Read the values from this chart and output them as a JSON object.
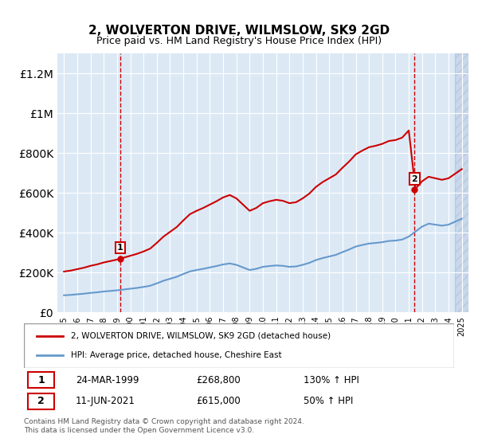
{
  "title": "2, WOLVERTON DRIVE, WILMSLOW, SK9 2GD",
  "subtitle": "Price paid vs. HM Land Registry's House Price Index (HPI)",
  "legend_line1": "2, WOLVERTON DRIVE, WILMSLOW, SK9 2GD (detached house)",
  "legend_line2": "HPI: Average price, detached house, Cheshire East",
  "transaction1_label": "1",
  "transaction1_date": "24-MAR-1999",
  "transaction1_price": "£268,800",
  "transaction1_hpi": "130% ↑ HPI",
  "transaction2_label": "2",
  "transaction2_date": "11-JUN-2021",
  "transaction2_price": "£615,000",
  "transaction2_hpi": "50% ↑ HPI",
  "footer": "Contains HM Land Registry data © Crown copyright and database right 2024.\nThis data is licensed under the Open Government Licence v3.0.",
  "red_color": "#cc0000",
  "blue_color": "#6699cc",
  "background_color": "#dce9f5",
  "hatch_color": "#c0d0e8",
  "grid_color": "#ffffff",
  "ylim_max": 1300000,
  "transaction1_year": 1999.23,
  "transaction1_value": 268800,
  "transaction2_year": 2021.44,
  "transaction2_value": 615000
}
